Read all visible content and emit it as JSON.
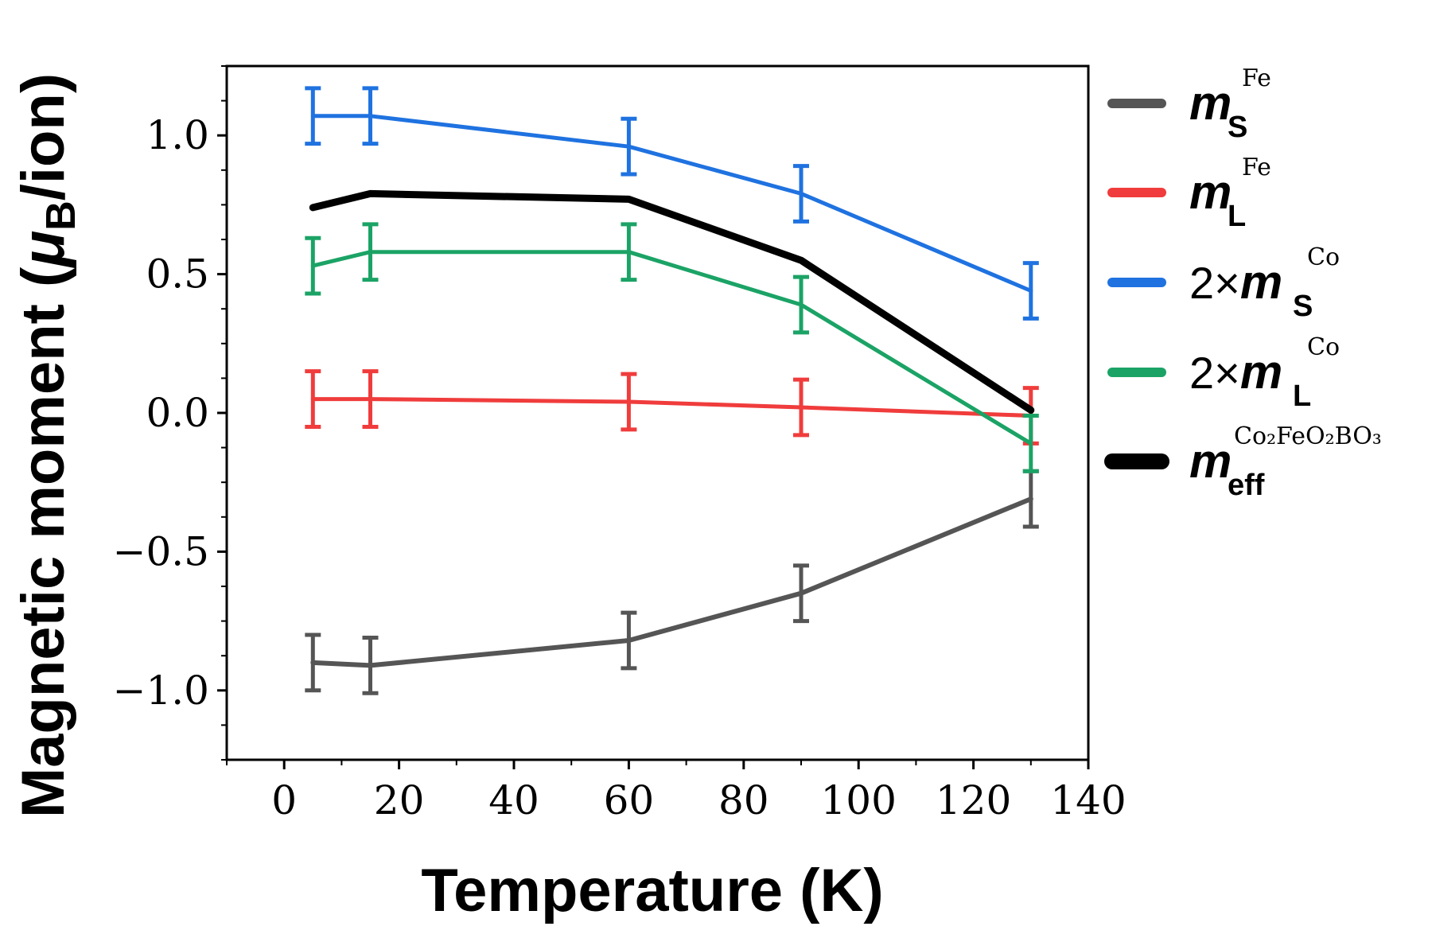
{
  "chart_data": {
    "type": "line",
    "xlabel": "Temperature (K)",
    "ylabel": "Magnetic moment (μB/ion)",
    "ylabel_parts": {
      "prefix": "Magnetic moment (",
      "mu": "μ",
      "mu_sub": "B",
      "suffix": "/ion)"
    },
    "xlim": [
      -10,
      140
    ],
    "ylim": [
      -1.25,
      1.25
    ],
    "xticks": [
      0,
      20,
      40,
      60,
      80,
      100,
      120,
      140
    ],
    "xtick_labels": [
      "0",
      "20",
      "40",
      "60",
      "80",
      "100",
      "120",
      "140"
    ],
    "yticks": [
      -1.0,
      -0.5,
      0.0,
      0.5,
      1.0
    ],
    "ytick_labels": [
      "−1.0",
      "−0.5",
      "0.0",
      "0.5",
      "1.0"
    ],
    "x": [
      5,
      15,
      60,
      90,
      130
    ],
    "legend_position": "right, outside plot",
    "series": [
      {
        "name": "m_S^Fe",
        "legend": {
          "prefix": "",
          "main": "m",
          "sub": "S",
          "sup": "Fe"
        },
        "color": "#555555",
        "values": [
          -0.9,
          -0.91,
          -0.82,
          -0.65,
          -0.31
        ],
        "errors": [
          0.1,
          0.1,
          0.1,
          0.1,
          0.1
        ],
        "width": 6
      },
      {
        "name": "m_L^Fe",
        "legend": {
          "prefix": "",
          "main": "m",
          "sub": "L",
          "sup": "Fe"
        },
        "color": "#f03c3c",
        "values": [
          0.05,
          0.05,
          0.04,
          0.02,
          -0.01
        ],
        "errors": [
          0.1,
          0.1,
          0.1,
          0.1,
          0.1
        ],
        "width": 5
      },
      {
        "name": "2×m_S^Co",
        "legend": {
          "prefix": "2×",
          "main": "m",
          "sub": "S",
          "sup": "Co"
        },
        "color": "#1f72e0",
        "values": [
          1.07,
          1.07,
          0.96,
          0.79,
          0.44
        ],
        "errors": [
          0.1,
          0.1,
          0.1,
          0.1,
          0.1
        ],
        "width": 5
      },
      {
        "name": "2×m_L^Co",
        "legend": {
          "prefix": "2×",
          "main": "m",
          "sub": "L",
          "sup": "Co"
        },
        "color": "#1ba366",
        "values": [
          0.53,
          0.58,
          0.58,
          0.39,
          -0.11
        ],
        "errors": [
          0.1,
          0.1,
          0.1,
          0.1,
          0.1
        ],
        "width": 5
      },
      {
        "name": "m_eff^Co2FeO2BO3",
        "legend": {
          "prefix": "",
          "main": "m",
          "sub": "eff",
          "sup": "Co₂FeO₂BO₃"
        },
        "color": "#000000",
        "values": [
          0.74,
          0.79,
          0.77,
          0.55,
          0.01
        ],
        "errors": null,
        "width": 9
      }
    ]
  }
}
